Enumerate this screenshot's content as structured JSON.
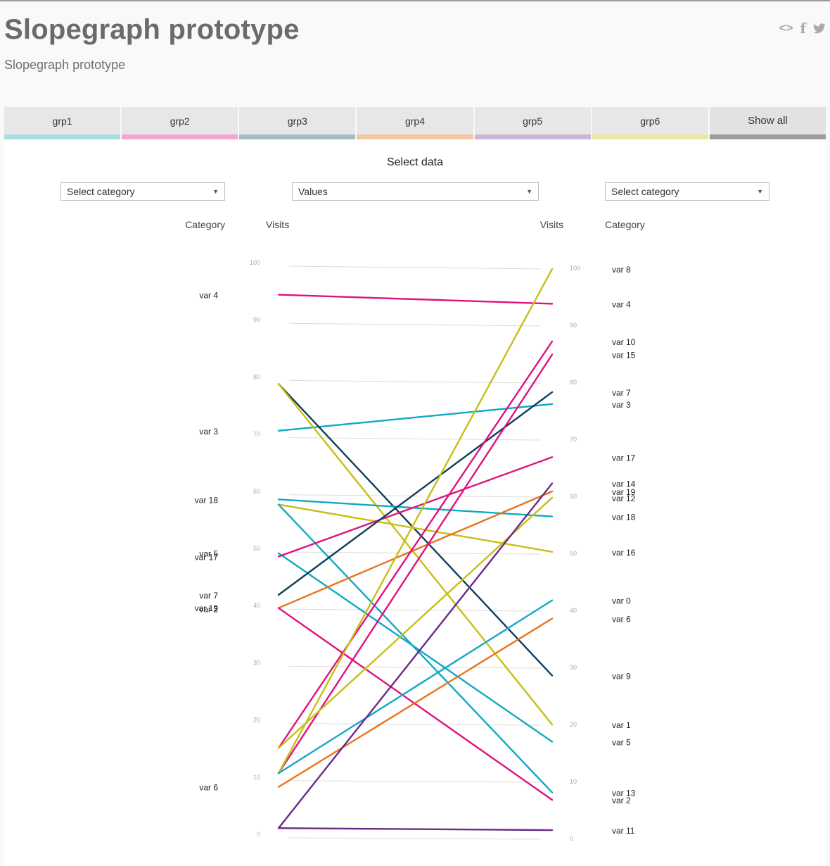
{
  "header": {
    "title": "Slopegraph prototype",
    "subtitle": "Slopegraph prototype",
    "share": {
      "embed_glyph": "<>",
      "facebook_glyph": "f"
    }
  },
  "tabs": [
    {
      "label": "grp1",
      "color": "#a6e0e7"
    },
    {
      "label": "grp2",
      "color": "#f3a7cf"
    },
    {
      "label": "grp3",
      "color": "#a5bdc4"
    },
    {
      "label": "grp4",
      "color": "#f4c8a2"
    },
    {
      "label": "grp5",
      "color": "#cbb5d8"
    },
    {
      "label": "grp6",
      "color": "#ede9a1"
    },
    {
      "label": "Show all",
      "color": "#9c9c9c"
    }
  ],
  "controls": {
    "title": "Select data",
    "left_select": "Select category",
    "mid_select": "Values",
    "right_select": "Select category"
  },
  "chart_data": {
    "type": "line",
    "headers": {
      "left_category": "Category",
      "left_metric": "Visits",
      "right_metric": "Visits",
      "right_category": "Category"
    },
    "ylim": [
      0,
      100
    ],
    "ticks": [
      0,
      10,
      20,
      30,
      40,
      50,
      60,
      70,
      80,
      90,
      100
    ],
    "left_labels": [
      {
        "text": "var 4",
        "value": 95
      },
      {
        "text": "var 3",
        "value": 71.2
      },
      {
        "text": "var 18",
        "value": 59.2
      },
      {
        "text": "var 5",
        "value": 49.8
      },
      {
        "text": "var 17",
        "value": 49.2
      },
      {
        "text": "var 7",
        "value": 42.5
      },
      {
        "text": "var 19",
        "value": 40.3
      },
      {
        "text": "var 2",
        "value": 40.1
      },
      {
        "text": "var 6",
        "value": 8.9
      }
    ],
    "right_labels": [
      {
        "text": "var 8",
        "value": 100
      },
      {
        "text": "var 4",
        "value": 93.9
      },
      {
        "text": "var 10",
        "value": 87.3
      },
      {
        "text": "var 15",
        "value": 85
      },
      {
        "text": "var 7",
        "value": 78.4
      },
      {
        "text": "var 3",
        "value": 76.3
      },
      {
        "text": "var 17",
        "value": 67
      },
      {
        "text": "var 14",
        "value": 62.4
      },
      {
        "text": "var 19",
        "value": 61
      },
      {
        "text": "var 12",
        "value": 59.9
      },
      {
        "text": "var 18",
        "value": 56.6
      },
      {
        "text": "var 16",
        "value": 50.4
      },
      {
        "text": "var 0",
        "value": 41.9
      },
      {
        "text": "var 6",
        "value": 38.7
      },
      {
        "text": "var 9",
        "value": 28.7
      },
      {
        "text": "var 1",
        "value": 20.1
      },
      {
        "text": "var 5",
        "value": 17.1
      },
      {
        "text": "var 13",
        "value": 8.2
      },
      {
        "text": "var 2",
        "value": 6.9
      },
      {
        "text": "var 11",
        "value": 1.6
      }
    ],
    "series": [
      {
        "left": 95,
        "right": 93.9,
        "color": "#e0117f"
      },
      {
        "left": 71.2,
        "right": 76.3,
        "color": "#11a9c4"
      },
      {
        "left": 79.4,
        "right": 28.7,
        "color": "#0d3e5a"
      },
      {
        "left": 79.4,
        "right": 20.1,
        "color": "#c8be14"
      },
      {
        "left": 59.2,
        "right": 56.6,
        "color": "#11a9c4"
      },
      {
        "left": 58.3,
        "right": 50.4,
        "color": "#c8be14"
      },
      {
        "left": 58.3,
        "right": 8.2,
        "color": "#11a9c4"
      },
      {
        "left": 49.8,
        "right": 17.1,
        "color": "#11a9c4"
      },
      {
        "left": 49.2,
        "right": 67,
        "color": "#e0117f"
      },
      {
        "left": 42.5,
        "right": 78.4,
        "color": "#0d3e5a"
      },
      {
        "left": 40.2,
        "right": 61,
        "color": "#e8721a"
      },
      {
        "left": 40.2,
        "right": 6.9,
        "color": "#e0117f"
      },
      {
        "left": 15.7,
        "right": 87.3,
        "color": "#e0117f"
      },
      {
        "left": 11.3,
        "right": 85,
        "color": "#e0117f"
      },
      {
        "left": 15.7,
        "right": 59.9,
        "color": "#c8be14"
      },
      {
        "left": 11.3,
        "right": 100,
        "color": "#c8be14"
      },
      {
        "left": 11.3,
        "right": 41.9,
        "color": "#11a9c4"
      },
      {
        "left": 8.9,
        "right": 38.7,
        "color": "#e8721a"
      },
      {
        "left": 1.7,
        "right": 62.4,
        "color": "#6a2a87"
      },
      {
        "left": 1.7,
        "right": 1.6,
        "color": "#6a2a87"
      }
    ]
  }
}
